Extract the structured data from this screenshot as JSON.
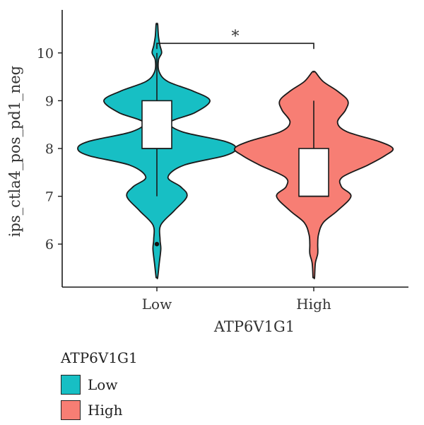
{
  "chart_data": {
    "type": "violin",
    "xlabel": "ATP6V1G1",
    "ylabel": "ips_ctla4_pos_pd1_neg",
    "categories": [
      "Low",
      "High"
    ],
    "ylim": [
      5.1,
      10.9
    ],
    "yticks": [
      6,
      7,
      8,
      9,
      10
    ],
    "grid": false,
    "legend_position": "bottom-left",
    "significance": {
      "between": [
        "Low",
        "High"
      ],
      "label": "*",
      "y": 10.2
    },
    "series": [
      {
        "name": "Low",
        "color": "#17BFC4",
        "box": {
          "whisker_low": 7.0,
          "q1": 8.0,
          "median": 8.0,
          "q3": 9.0,
          "whisker_high": 10.0
        },
        "outliers": [
          6.0
        ],
        "density_profile": [
          [
            5.3,
            0.01
          ],
          [
            5.6,
            0.03
          ],
          [
            5.9,
            0.05
          ],
          [
            6.1,
            0.04
          ],
          [
            6.4,
            0.05
          ],
          [
            6.7,
            0.22
          ],
          [
            7.0,
            0.38
          ],
          [
            7.2,
            0.3
          ],
          [
            7.4,
            0.14
          ],
          [
            7.65,
            0.34
          ],
          [
            7.85,
            0.86
          ],
          [
            8.0,
            1.0
          ],
          [
            8.15,
            0.86
          ],
          [
            8.35,
            0.32
          ],
          [
            8.55,
            0.17
          ],
          [
            8.75,
            0.48
          ],
          [
            9.0,
            0.67
          ],
          [
            9.2,
            0.46
          ],
          [
            9.4,
            0.14
          ],
          [
            9.6,
            0.03
          ],
          [
            9.85,
            0.02
          ],
          [
            10.0,
            0.06
          ],
          [
            10.15,
            0.04
          ],
          [
            10.35,
            0.02
          ],
          [
            10.6,
            0.01
          ]
        ]
      },
      {
        "name": "High",
        "color": "#F77E74",
        "box": {
          "whisker_low": 7.0,
          "q1": 7.0,
          "median": 7.0,
          "q3": 8.0,
          "whisker_high": 9.0
        },
        "outliers": [],
        "density_profile": [
          [
            5.3,
            0.01
          ],
          [
            5.6,
            0.02
          ],
          [
            5.8,
            0.05
          ],
          [
            6.0,
            0.05
          ],
          [
            6.2,
            0.06
          ],
          [
            6.45,
            0.12
          ],
          [
            6.7,
            0.3
          ],
          [
            7.0,
            0.47
          ],
          [
            7.2,
            0.35
          ],
          [
            7.4,
            0.36
          ],
          [
            7.65,
            0.68
          ],
          [
            7.85,
            0.9
          ],
          [
            8.0,
            1.0
          ],
          [
            8.15,
            0.82
          ],
          [
            8.35,
            0.42
          ],
          [
            8.55,
            0.3
          ],
          [
            8.8,
            0.4
          ],
          [
            9.0,
            0.43
          ],
          [
            9.2,
            0.3
          ],
          [
            9.4,
            0.12
          ],
          [
            9.6,
            0.02
          ]
        ]
      }
    ]
  }
}
